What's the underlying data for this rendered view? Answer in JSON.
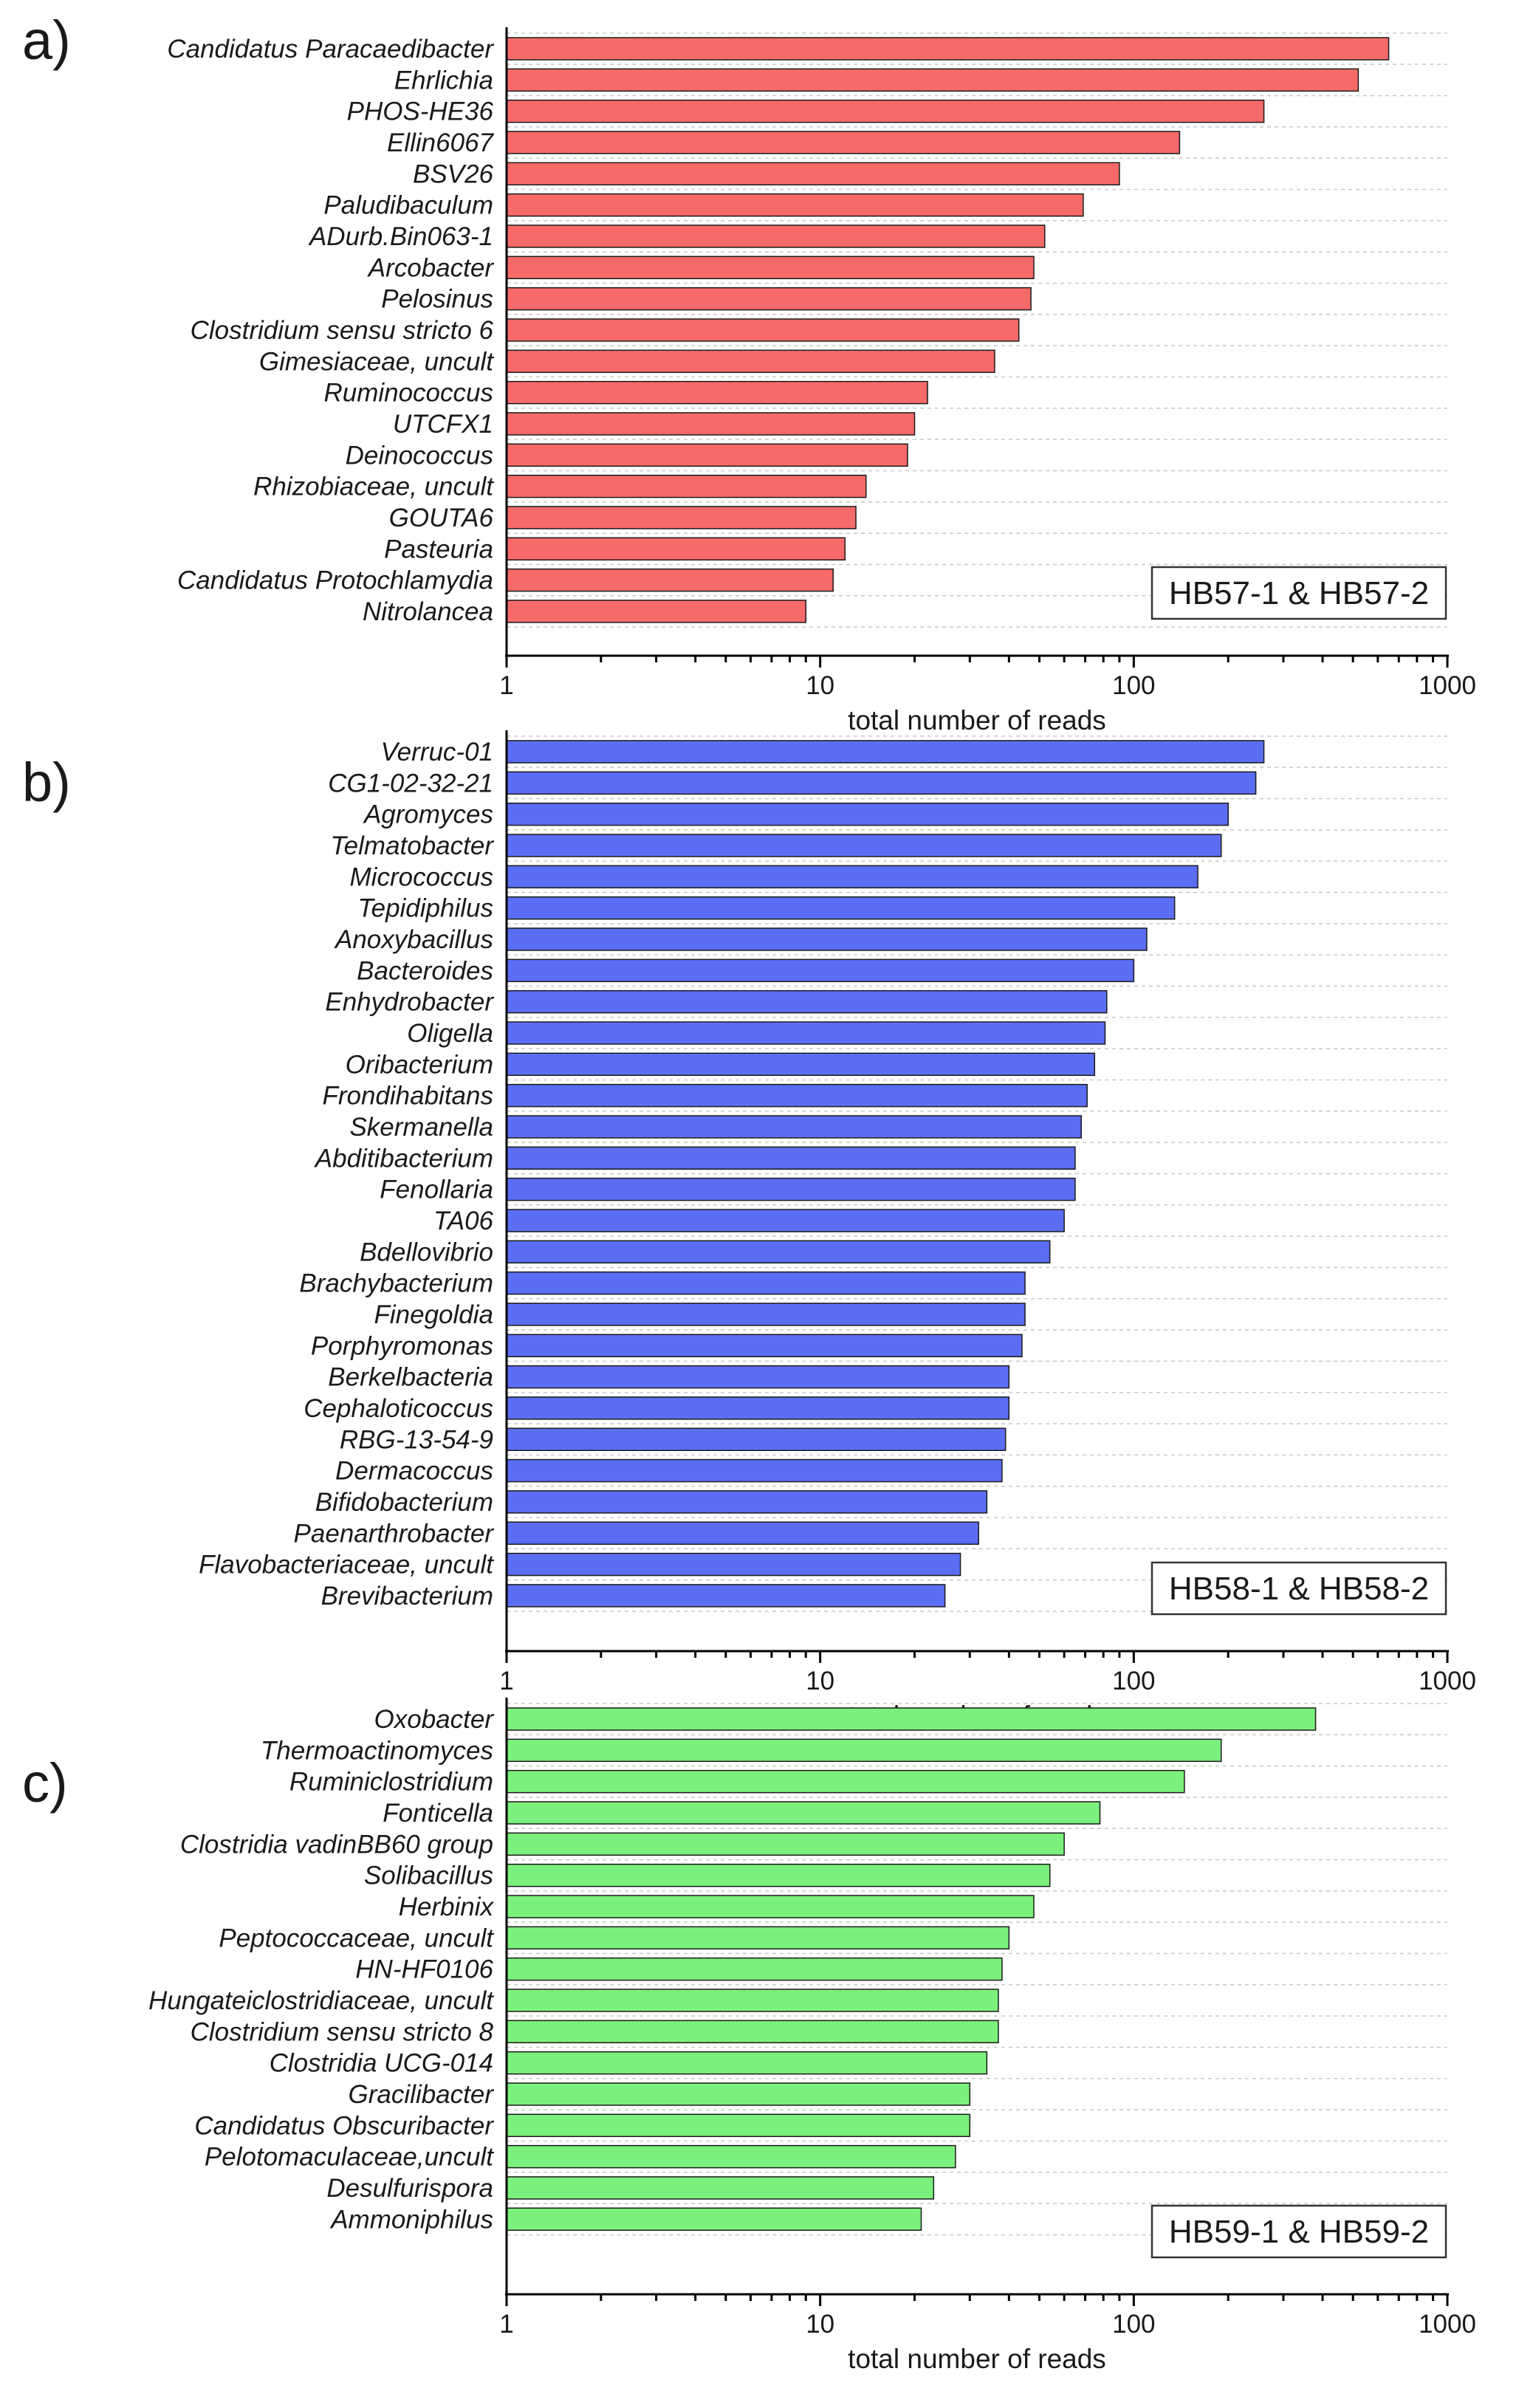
{
  "chart_data": [
    {
      "type": "bar",
      "orientation": "horizontal",
      "panel_label": "a)",
      "legend": "HB57-1 & HB57-2",
      "color": "#f76a6a",
      "xlabel": "total number of reads",
      "xscale": "log",
      "xlim": [
        1,
        1000
      ],
      "xticks": [
        "1",
        "10",
        "100",
        "1000"
      ],
      "categories": [
        "Candidatus Paracaedibacter",
        "Ehrlichia",
        "PHOS-HE36",
        "Ellin6067",
        "BSV26",
        "Paludibaculum",
        "ADurb.Bin063-1",
        "Arcobacter",
        "Pelosinus",
        "Clostridium sensu stricto 6",
        "Gimesiaceae, uncult",
        "Ruminococcus",
        "UTCFX1",
        "Deinococcus",
        "Rhizobiaceae, uncult",
        "GOUTA6",
        "Pasteuria",
        "Candidatus Protochlamydia",
        "Nitrolancea"
      ],
      "values": [
        650,
        520,
        260,
        140,
        90,
        69,
        52,
        48,
        47,
        43,
        36,
        22,
        20,
        19,
        14,
        13,
        12,
        11,
        9
      ]
    },
    {
      "type": "bar",
      "orientation": "horizontal",
      "panel_label": "b)",
      "legend": "HB58-1 & HB58-2",
      "color": "#5b6ef3",
      "xlabel": "total number of reads",
      "xscale": "log",
      "xlim": [
        1,
        1000
      ],
      "xticks": [
        "1",
        "10",
        "100",
        "1000"
      ],
      "categories": [
        "Verruc-01",
        "CG1-02-32-21",
        "Agromyces",
        "Telmatobacter",
        "Micrococcus",
        "Tepidiphilus",
        "Anoxybacillus",
        "Bacteroides",
        "Enhydrobacter",
        "Oligella",
        "Oribacterium",
        "Frondihabitans",
        "Skermanella",
        "Abditibacterium",
        "Fenollaria",
        "TA06",
        "Bdellovibrio",
        "Brachybacterium",
        "Finegoldia",
        "Porphyromonas",
        "Berkelbacteria",
        "Cephaloticoccus",
        "RBG-13-54-9",
        "Dermacoccus",
        "Bifidobacterium",
        "Paenarthrobacter",
        "Flavobacteriaceae, uncult",
        "Brevibacterium"
      ],
      "values": [
        260,
        245,
        200,
        190,
        160,
        135,
        110,
        100,
        82,
        81,
        75,
        71,
        68,
        65,
        65,
        60,
        54,
        45,
        45,
        44,
        40,
        40,
        39,
        38,
        34,
        32,
        28,
        25
      ]
    },
    {
      "type": "bar",
      "orientation": "horizontal",
      "panel_label": "c)",
      "legend": "HB59-1 & HB59-2",
      "color": "#7cf07c",
      "xlabel": "total number of reads",
      "xscale": "log",
      "xlim": [
        1,
        1000
      ],
      "xticks": [
        "1",
        "10",
        "100",
        "1000"
      ],
      "categories": [
        "Oxobacter",
        "Thermoactinomyces",
        "Ruminiclostridium",
        "Fonticella",
        "Clostridia vadinBB60 group",
        "Solibacillus",
        "Herbinix",
        "Peptococcaceae, uncult",
        "HN-HF0106",
        "Hungateiclostridiaceae, uncult",
        "Clostridium sensu stricto 8",
        "Clostridia UCG-014",
        "Gracilibacter",
        "Candidatus Obscuribacter",
        "Pelotomaculaceae,uncult",
        "Desulfurispora",
        "Ammoniphilus"
      ],
      "values": [
        380,
        190,
        145,
        78,
        60,
        54,
        48,
        40,
        38,
        37,
        37,
        34,
        30,
        30,
        27,
        23,
        21
      ]
    }
  ]
}
